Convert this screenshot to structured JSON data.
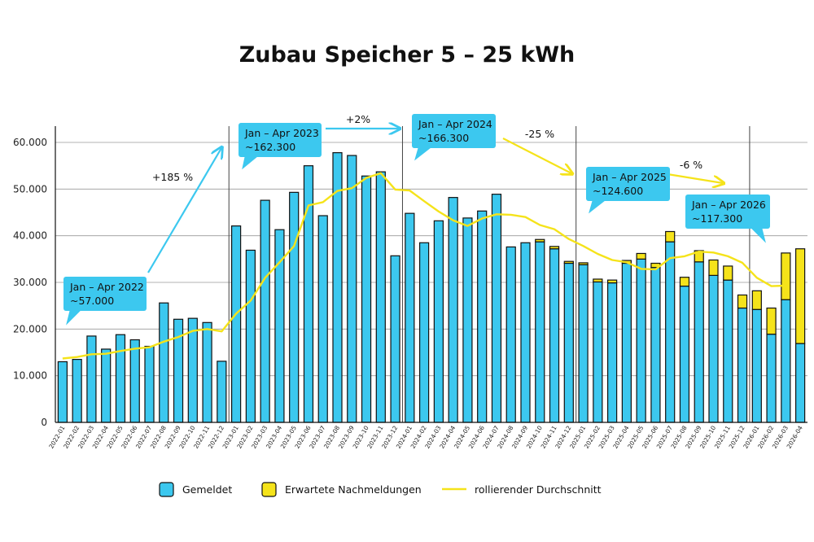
{
  "chart_data": {
    "type": "bar",
    "title": "Zubau Speicher 5 – 25 kWh",
    "ylim": [
      0,
      65000
    ],
    "yticks": [
      "0",
      "10.000",
      "20.000",
      "30.000",
      "40.000",
      "50.000",
      "60.000"
    ],
    "ytick_values": [
      0,
      10000,
      20000,
      30000,
      40000,
      50000,
      60000
    ],
    "grid": true,
    "legend_position": "bottom",
    "categories": [
      "2022-01",
      "2022-02",
      "2022-03",
      "2022-04",
      "2022-05",
      "2022-06",
      "2022-07",
      "2022-08",
      "2022-09",
      "2022-10",
      "2022-11",
      "2022-12",
      "2023-01",
      "2023-02",
      "2023-03",
      "2023-04",
      "2023-05",
      "2023-06",
      "2023-07",
      "2023-08",
      "2023-09",
      "2023-10",
      "2023-11",
      "2023-12",
      "2024-01",
      "2024-02",
      "2024-03",
      "2024-04",
      "2024-05",
      "2024-06",
      "2024-07",
      "2024-08",
      "2024-09",
      "2024-10",
      "2024-11",
      "2024-12",
      "2025-01",
      "2025-02",
      "2025-03",
      "2025-04",
      "2025-05",
      "2025-06",
      "2025-07",
      "2025-08",
      "2025-09",
      "2025-10",
      "2025-11",
      "2025-12",
      "2026-01",
      "2026-02",
      "2026-03",
      "2026-04"
    ],
    "series": [
      {
        "name": "Gemeldet",
        "color": "#3cc8ef",
        "stack": true,
        "values": [
          13000,
          13500,
          18500,
          15700,
          18800,
          17700,
          16300,
          25600,
          22100,
          22300,
          21400,
          13100,
          42100,
          36900,
          47600,
          41300,
          49300,
          55000,
          44300,
          57800,
          57200,
          52800,
          53700,
          35700,
          44800,
          38500,
          43200,
          48200,
          43800,
          45300,
          48900,
          37600,
          38500,
          38700,
          37200,
          34100,
          33800,
          30100,
          29900,
          34100,
          35000,
          33200,
          38700,
          29200,
          34400,
          31500,
          30500,
          24500,
          24200,
          18900,
          26300,
          16900
        ]
      },
      {
        "name": "Erwartete Nachmeldungen",
        "color": "#f5e31a",
        "stack": true,
        "values": [
          0,
          0,
          0,
          0,
          0,
          0,
          0,
          0,
          0,
          0,
          0,
          0,
          0,
          0,
          0,
          0,
          0,
          0,
          0,
          0,
          0,
          0,
          0,
          0,
          0,
          0,
          0,
          0,
          0,
          0,
          0,
          0,
          0,
          500,
          500,
          400,
          400,
          600,
          600,
          600,
          1200,
          900,
          2200,
          1900,
          2400,
          3300,
          3000,
          2800,
          4000,
          5600,
          10000,
          20300
        ]
      },
      {
        "name": "rollierender Durchschnitt",
        "type": "line",
        "color": "#f5e31a",
        "values": [
          13700,
          14000,
          14600,
          14700,
          15300,
          15800,
          16100,
          17300,
          18300,
          19600,
          20000,
          19500,
          23300,
          26100,
          31000,
          34300,
          37800,
          46500,
          47200,
          49600,
          50200,
          52400,
          53400,
          49900,
          49700,
          47400,
          45200,
          43300,
          42100,
          43700,
          44600,
          44500,
          44000,
          42300,
          41400,
          39300,
          37800,
          36100,
          34800,
          34300,
          32900,
          32800,
          35200,
          35600,
          36600,
          36400,
          35600,
          34200,
          31000,
          29200,
          29300,
          null
        ]
      }
    ],
    "legend": [
      {
        "label": "Gemeldet",
        "kind": "box",
        "color": "#3cc8ef"
      },
      {
        "label": "Erwartete Nachmeldungen",
        "kind": "box",
        "color": "#f5e31a"
      },
      {
        "label": "rollierender Durchschnitt",
        "kind": "line",
        "color": "#f5e31a"
      }
    ],
    "annotations": [
      {
        "line1": "Jan – Apr 2022",
        "line2": "~57.000"
      },
      {
        "line1": "Jan – Apr 2023",
        "line2": "~162.300"
      },
      {
        "line1": "Jan – Apr 2024",
        "line2": "~166.300"
      },
      {
        "line1": "Jan – Apr 2025",
        "line2": "~124.600"
      },
      {
        "line1": "Jan – Apr 2026",
        "line2": "~117.300"
      }
    ],
    "changes": [
      {
        "text": "+185 %",
        "color": "#3cc8ef"
      },
      {
        "text": "+2%",
        "color": "#3cc8ef"
      },
      {
        "text": "-25 %",
        "color": "#f5e31a"
      },
      {
        "text": "-6 %",
        "color": "#f5e31a"
      }
    ]
  }
}
